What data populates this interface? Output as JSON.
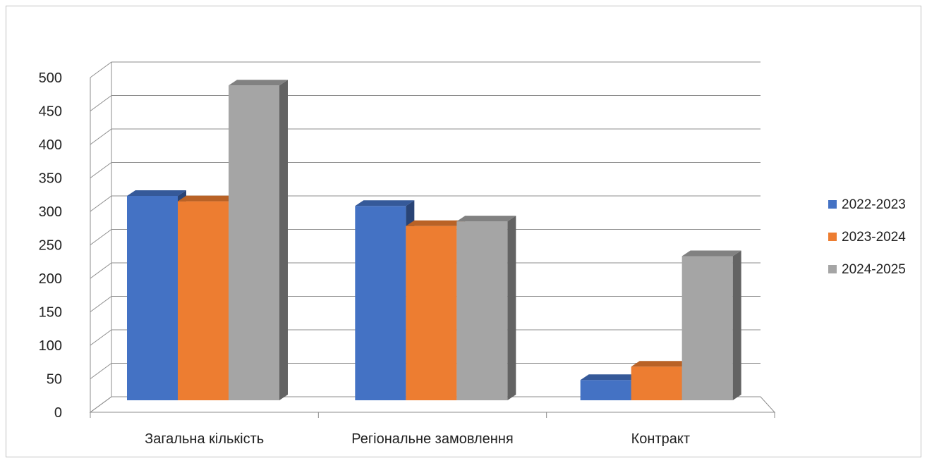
{
  "chart_data": {
    "type": "bar",
    "title": "",
    "xlabel": "",
    "ylabel": "",
    "categories": [
      "Загальна кількість",
      "Регіональне замовлення",
      "Контракт"
    ],
    "series": [
      {
        "name": "2022-2023",
        "values": [
          300,
          285,
          25
        ],
        "color": "#4472C4"
      },
      {
        "name": "2023-2024",
        "values": [
          292,
          255,
          45
        ],
        "color": "#ED7D31"
      },
      {
        "name": "2024-2025",
        "values": [
          465,
          262,
          210
        ],
        "color": "#A5A5A5"
      }
    ],
    "ylim": [
      0,
      500
    ],
    "yticks": [
      0,
      50,
      100,
      150,
      200,
      250,
      300,
      350,
      400,
      450,
      500
    ],
    "grid": true,
    "legend_position": "right",
    "style": "3d-clustered-column"
  }
}
